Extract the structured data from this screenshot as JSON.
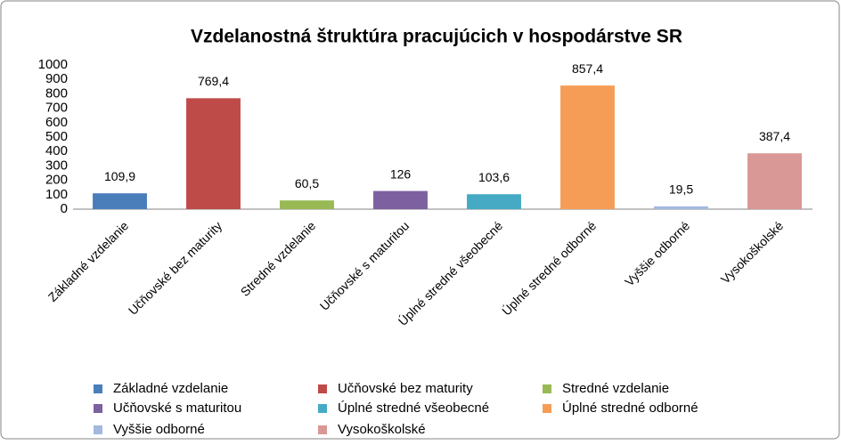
{
  "chart_data": {
    "type": "bar",
    "title": "Vzdelanostná štruktúra pracujúcich v hospodárstve SR",
    "categories": [
      "Základné vzdelanie",
      "Učňovské bez maturity",
      "Stredné vzdelanie",
      "Učňovské s maturitou",
      "Úplné stredné všeobecné",
      "Úplné stredné odborné",
      "Vyššie odborné",
      "Vysokoškolské"
    ],
    "values": [
      109.9,
      769.4,
      60.5,
      126,
      103.6,
      857.4,
      19.5,
      387.4
    ],
    "value_labels": [
      "109,9",
      "769,4",
      "60,5",
      "126",
      "103,6",
      "857,4",
      "19,5",
      "387,4"
    ],
    "colors": [
      "#4a7ebb",
      "#be4b48",
      "#98b954",
      "#7d60a0",
      "#46aac5",
      "#f59d56",
      "#a3b9e0",
      "#d99795"
    ],
    "ylim": [
      0,
      1000
    ],
    "yticks": [
      0,
      100,
      200,
      300,
      400,
      500,
      600,
      700,
      800,
      900,
      1000
    ],
    "grid": false,
    "legend": "bottom"
  }
}
